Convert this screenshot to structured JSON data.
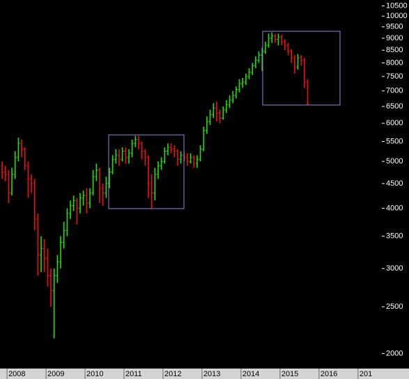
{
  "chart_data": {
    "type": "ohlc",
    "ylog": true,
    "up_color": "#22e000",
    "down_color": "#ee1010",
    "xlim": [
      2007.82,
      2017.61
    ],
    "ylim": [
      1880,
      10800
    ],
    "xticks": [
      2008,
      2009,
      2010,
      2011,
      2012,
      2013,
      2014,
      2015,
      2016,
      {
        "value": 2017,
        "label": "201"
      }
    ],
    "yticks": [
      2000,
      2500,
      3000,
      3500,
      4000,
      4500,
      5000,
      5500,
      6000,
      6500,
      7000,
      7500,
      8000,
      8500,
      9000,
      9500,
      10000,
      10500
    ],
    "x": [
      2007.875,
      2007.958,
      2008.042,
      2008.125,
      2008.208,
      2008.292,
      2008.375,
      2008.458,
      2008.542,
      2008.625,
      2008.708,
      2008.792,
      2008.875,
      2008.958,
      2009.042,
      2009.125,
      2009.208,
      2009.292,
      2009.375,
      2009.458,
      2009.542,
      2009.625,
      2009.708,
      2009.792,
      2009.875,
      2009.958,
      2010.042,
      2010.125,
      2010.208,
      2010.292,
      2010.375,
      2010.458,
      2010.542,
      2010.625,
      2010.708,
      2010.792,
      2010.875,
      2010.958,
      2011.042,
      2011.125,
      2011.208,
      2011.292,
      2011.375,
      2011.458,
      2011.542,
      2011.625,
      2011.708,
      2011.792,
      2011.875,
      2011.958,
      2012.042,
      2012.125,
      2012.208,
      2012.292,
      2012.375,
      2012.458,
      2012.542,
      2012.625,
      2012.708,
      2012.792,
      2012.875,
      2012.958,
      2013.042,
      2013.125,
      2013.208,
      2013.292,
      2013.375,
      2013.458,
      2013.542,
      2013.625,
      2013.708,
      2013.792,
      2013.875,
      2013.958,
      2014.042,
      2014.125,
      2014.208,
      2014.292,
      2014.375,
      2014.458,
      2014.542,
      2014.625,
      2014.708,
      2014.792,
      2014.875,
      2014.958,
      2015.042,
      2015.125,
      2015.208,
      2015.292,
      2015.375,
      2015.458,
      2015.542,
      2015.625,
      2015.708
    ],
    "open": [
      4900,
      4750,
      4700,
      4300,
      4700,
      5100,
      5450,
      5300,
      4900,
      4600,
      4500,
      3800,
      3200,
      3300,
      3150,
      2900,
      2700,
      2900,
      3100,
      3400,
      3600,
      3900,
      4050,
      4150,
      4000,
      4200,
      4250,
      4100,
      4300,
      4650,
      4800,
      4400,
      4300,
      4500,
      4750,
      5050,
      5150,
      5050,
      5250,
      5100,
      5200,
      5450,
      5550,
      5450,
      5250,
      5100,
      4500,
      4300,
      4700,
      4900,
      5000,
      5250,
      5350,
      5300,
      5250,
      5050,
      5150,
      5100,
      5000,
      5100,
      4950,
      5050,
      5300,
      5800,
      6050,
      6250,
      6450,
      6300,
      6150,
      6400,
      6550,
      6700,
      6850,
      7050,
      7250,
      7300,
      7500,
      7650,
      7900,
      8100,
      8300,
      8450,
      8700,
      9000,
      9100,
      8950,
      9050,
      8850,
      8700,
      8450,
      8200,
      7850,
      8200,
      8100,
      7300
    ],
    "high": [
      5000,
      4900,
      4800,
      4850,
      5250,
      5600,
      5550,
      5350,
      5000,
      4700,
      4600,
      3900,
      3500,
      3450,
      3300,
      3000,
      3000,
      3200,
      3500,
      3750,
      4000,
      4150,
      4250,
      4200,
      4300,
      4350,
      4400,
      4400,
      4800,
      4950,
      4850,
      4500,
      4650,
      4850,
      5150,
      5300,
      5300,
      5350,
      5350,
      5300,
      5550,
      5650,
      5650,
      5500,
      5300,
      5150,
      4700,
      4850,
      5000,
      5100,
      5350,
      5450,
      5450,
      5400,
      5300,
      5250,
      5250,
      5200,
      5200,
      5150,
      5150,
      5400,
      5900,
      6200,
      6400,
      6600,
      6650,
      6400,
      6500,
      6700,
      6850,
      7000,
      7150,
      7400,
      7450,
      7600,
      7800,
      8000,
      8250,
      8450,
      8600,
      8850,
      9200,
      9250,
      9200,
      9200,
      9150,
      8950,
      8800,
      8550,
      8300,
      8350,
      8300,
      8200,
      7400
    ],
    "low": [
      4600,
      4550,
      4100,
      4250,
      4600,
      5000,
      5100,
      4800,
      4200,
      4300,
      3600,
      2900,
      2950,
      2950,
      2750,
      2500,
      2150,
      2800,
      3000,
      3300,
      3500,
      3800,
      3950,
      3700,
      3900,
      4050,
      3900,
      4000,
      4250,
      4550,
      4100,
      4050,
      4200,
      4400,
      4700,
      4950,
      4900,
      5000,
      4950,
      4950,
      5100,
      5350,
      5300,
      5050,
      4900,
      4200,
      4000,
      4150,
      4600,
      4800,
      4950,
      5150,
      5200,
      5100,
      4900,
      4950,
      5000,
      4900,
      4950,
      4850,
      4850,
      5000,
      5250,
      5700,
      5950,
      6150,
      6050,
      6000,
      6100,
      6300,
      6450,
      6600,
      6750,
      6950,
      7100,
      7200,
      7400,
      7550,
      7800,
      8000,
      7700,
      8350,
      8600,
      8800,
      8800,
      8700,
      8700,
      8500,
      8300,
      8000,
      7600,
      7750,
      7900,
      7100,
      6550
    ],
    "close": [
      4750,
      4700,
      4300,
      4700,
      5100,
      5450,
      5300,
      4900,
      4600,
      4500,
      3800,
      3200,
      3300,
      3150,
      2900,
      2700,
      2900,
      3100,
      3400,
      3600,
      3900,
      4050,
      4150,
      4000,
      4200,
      4250,
      4100,
      4300,
      4650,
      4800,
      4400,
      4300,
      4500,
      4750,
      5050,
      5150,
      5050,
      5250,
      5100,
      5200,
      5450,
      5550,
      5450,
      5250,
      5100,
      4500,
      4300,
      4700,
      4900,
      5000,
      5250,
      5350,
      5300,
      5250,
      5050,
      5150,
      5100,
      5000,
      5100,
      4950,
      5050,
      5300,
      5800,
      6050,
      6250,
      6450,
      6300,
      6150,
      6400,
      6550,
      6700,
      6850,
      7050,
      7250,
      7300,
      7500,
      7650,
      7900,
      8100,
      8300,
      8450,
      8700,
      9000,
      9100,
      8950,
      9050,
      8850,
      8700,
      8450,
      8200,
      7850,
      8200,
      8100,
      7300,
      6600
    ]
  }
}
